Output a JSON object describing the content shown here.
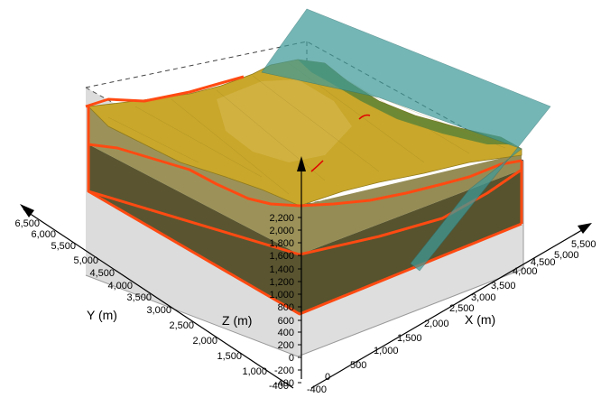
{
  "axes": {
    "x": {
      "title": "X (m)",
      "ticks": [
        "0",
        "500",
        "1,000",
        "1,500",
        "2,000",
        "2,500",
        "3,000",
        "3,500",
        "4,000",
        "4,500",
        "5,000",
        "5,500"
      ]
    },
    "y": {
      "title": "Y (m)",
      "ticks": [
        "1,000",
        "1,500",
        "2,000",
        "2,500",
        "3,000",
        "3,500",
        "4,000",
        "4,500",
        "5,000",
        "5,500",
        "6,000",
        "6,500"
      ]
    },
    "z": {
      "title": "Z (m)",
      "ticks": [
        "-400",
        "-200",
        "0",
        "200",
        "400",
        "600",
        "800",
        "1,000",
        "1,200",
        "1,400",
        "1,600",
        "1,800",
        "2,000",
        "2,200"
      ]
    },
    "corner_labels": {
      "x_start": "-400",
      "y_start": "-400"
    }
  },
  "colors": {
    "surface": "#c9a72a",
    "surface_dark": "#8f7a1d",
    "upper_layer": "#9c9259",
    "lower_layer": "#5a5530",
    "horizon": "#ff4a12",
    "fault_plane": "#3f9a99",
    "vegetation": "#4f7f3a",
    "box_back": "#d8d8d8"
  }
}
